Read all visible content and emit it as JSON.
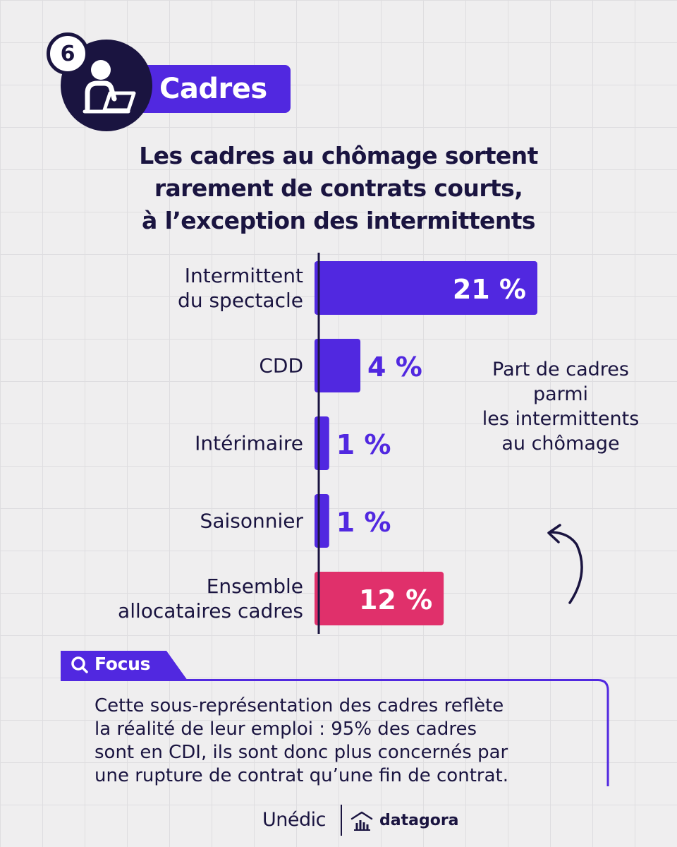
{
  "header": {
    "badge_number": "6",
    "category": "Cadres",
    "title_lines": [
      "Les cadres au chômage sortent",
      "rarement de contrats courts,",
      "à l’exception des intermittents"
    ]
  },
  "chart_data": {
    "type": "bar",
    "orientation": "horizontal",
    "categories": [
      [
        "Intermittent",
        "du spectacle"
      ],
      [
        "CDD"
      ],
      [
        "Intérimaire"
      ],
      [
        "Saisonnier"
      ],
      [
        "Ensemble",
        "allocataires cadres"
      ]
    ],
    "values": [
      21,
      4,
      1,
      1,
      12
    ],
    "value_labels": [
      "21 %",
      "4 %",
      "1 %",
      "1 %",
      "12 %"
    ],
    "bar_colors": [
      "#5128e0",
      "#5128e0",
      "#5128e0",
      "#5128e0",
      "#e0306b"
    ],
    "unit": "%",
    "xlim": [
      0,
      21
    ]
  },
  "annotation": {
    "lines": [
      "Part de cadres",
      "parmi",
      "les intermittents",
      "au chômage"
    ],
    "points_to": "Intermittent du spectacle"
  },
  "focus": {
    "label": "Focus",
    "icon": "search-icon",
    "lines": [
      "Cette sous-représentation des cadres reflète",
      "la réalité de leur emploi : 95% des cadres",
      "sont en CDI, ils sont donc plus concernés par",
      "une rupture de contrat qu’une fin de contrat."
    ]
  },
  "footer": {
    "brand_left": "Unédic",
    "brand_right": "datagora",
    "brand_right_icon": "bar-chart-house-icon"
  },
  "colors": {
    "accent": "#5128e0",
    "highlight": "#e0306b",
    "ink": "#1a1440",
    "background": "#efeeef"
  }
}
